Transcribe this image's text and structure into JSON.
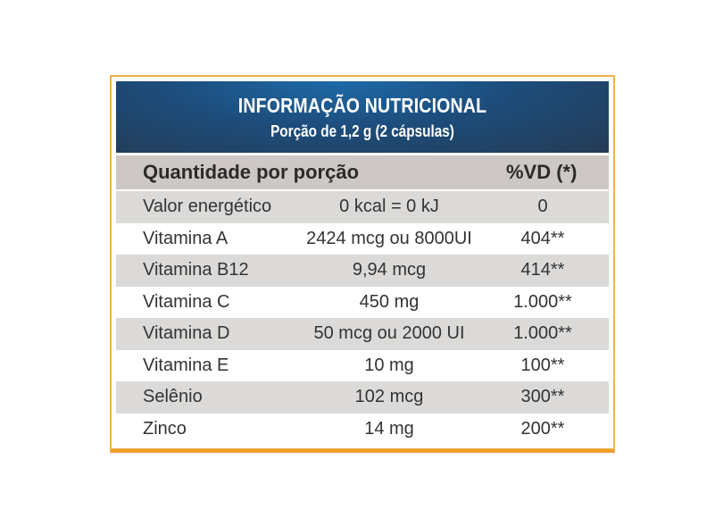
{
  "header": {
    "title": "INFORMAÇÃO NUTRICIONAL",
    "subtitle": "Porção de 1,2 g (2 cápsulas)"
  },
  "columns": {
    "quantity": "Quantidade por porção",
    "dv": "%VD (*)"
  },
  "rows": [
    {
      "name": "Valor energético",
      "amount": "0 kcal = 0 kJ",
      "dv": "0"
    },
    {
      "name": "Vitamina A",
      "amount": "2424 mcg ou 8000UI",
      "dv": "404**"
    },
    {
      "name": "Vitamina B12",
      "amount": "9,94 mcg",
      "dv": "414**"
    },
    {
      "name": "Vitamina C",
      "amount": "450 mg",
      "dv": "1.000**"
    },
    {
      "name": "Vitamina D",
      "amount": "50 mcg ou 2000 UI",
      "dv": "1.000**"
    },
    {
      "name": "Vitamina E",
      "amount": "10 mg",
      "dv": "100**"
    },
    {
      "name": "Selênio",
      "amount": "102 mcg",
      "dv": "300**"
    },
    {
      "name": "Zinco",
      "amount": "14 mg",
      "dv": "200**"
    }
  ],
  "colors": {
    "header_bg": "#1d4d7c",
    "border": "#f0a030",
    "stripe": "#dcdad8",
    "colhead_bg": "#cdc8c5"
  }
}
